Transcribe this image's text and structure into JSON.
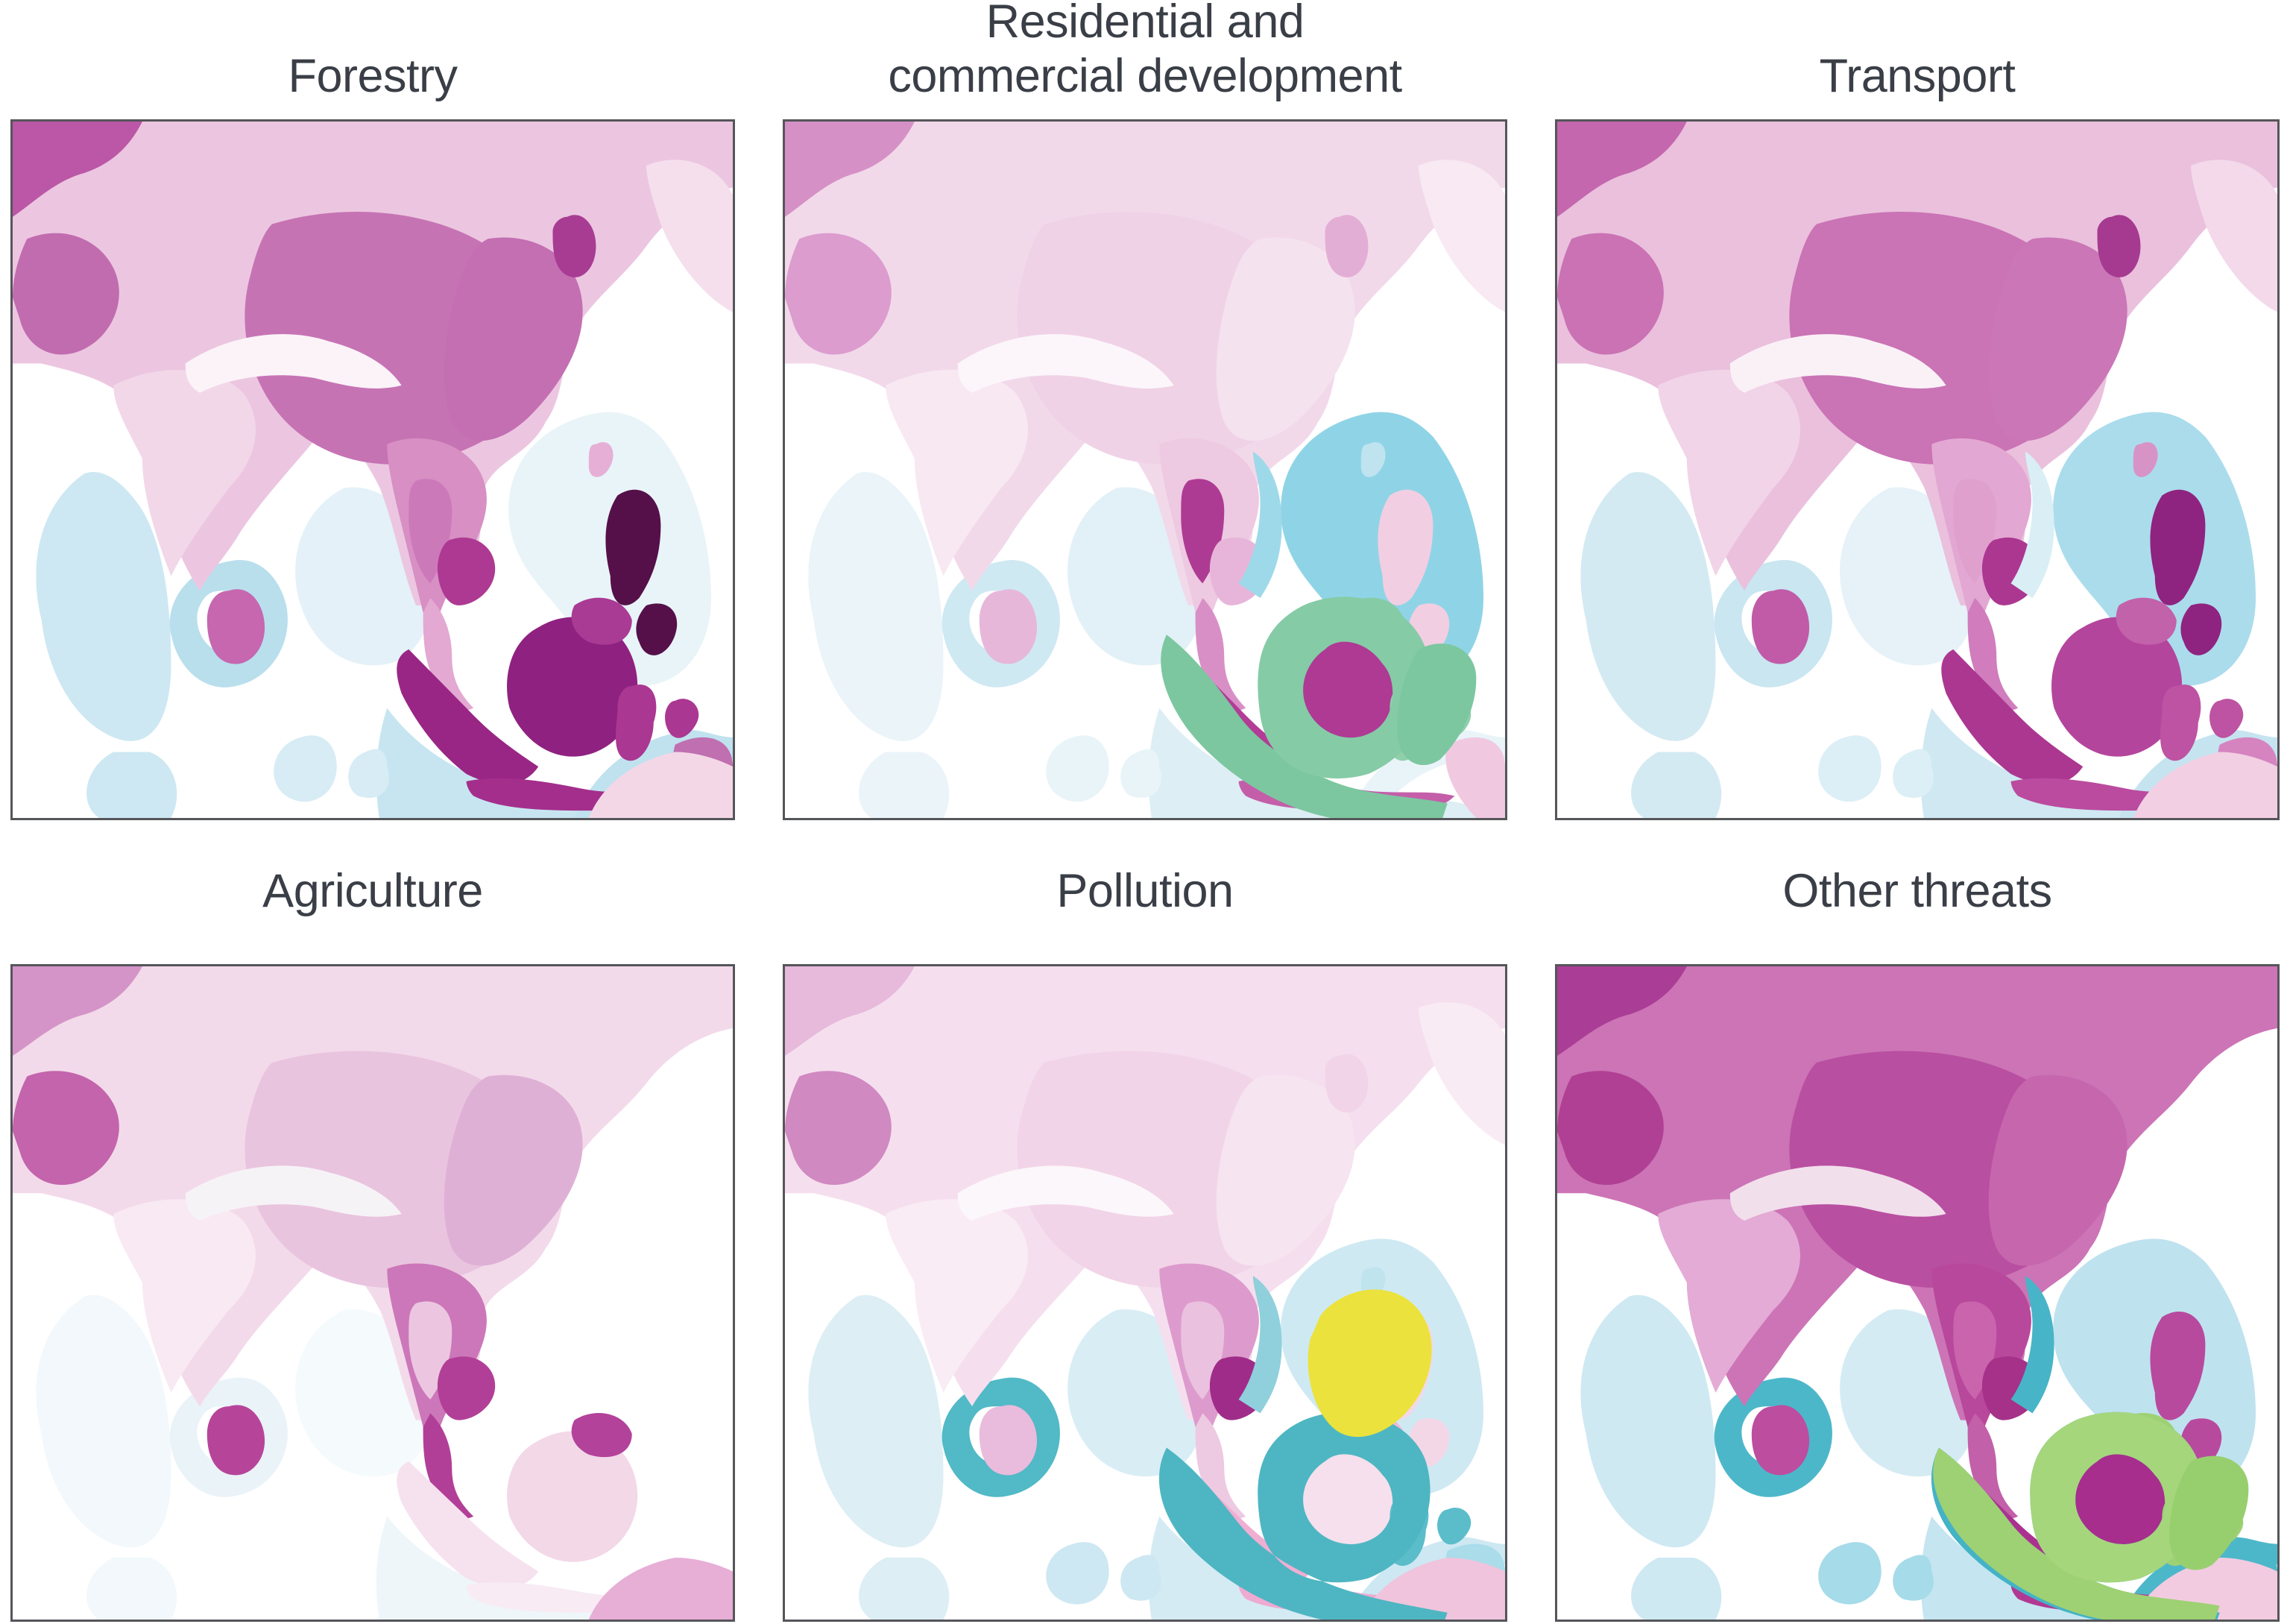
{
  "figure": {
    "kind": "map-grid",
    "text_color": "#3a3e46",
    "frame_color": "#55565a",
    "background": "#ffffff",
    "panels": [
      {
        "id": "forestry",
        "title": "Forestry",
        "colors": {
          "seaA": "#cde8f2",
          "seaB": "#e4f1f8",
          "seaC": "#e9f4f9",
          "seaD": "#c7e5f0",
          "seaE": "#bfe2ee",
          "seaG": "#d7ecf5",
          "seaF": "#b9dfec",
          "land_main": "#ecc6e0",
          "land_top_dark": "#bb57a6",
          "land_tibet": "#c673b4",
          "land_china_east": "#c36fb2",
          "land_india_light": "#f2d7e9",
          "land_pakistan": "#c26cb0",
          "land_himalaya": "#fbf3f8",
          "land_indochina": "#d78fc4",
          "land_thailand": "#cc79ba",
          "land_cambodia": "#ad3992",
          "sri_lanka": "#c667af",
          "malay_peninsula": "#e3a9d2",
          "japan_faint": "#f5dfed",
          "korea_patch": "#a83c93",
          "taiwan": "#e6b0d6",
          "philippines": "#551049",
          "sumatra": "#992685",
          "borneo": "#8f2180",
          "borneo_north": "#a93b94",
          "java_chain": "#a42e8c",
          "sulawesi": "#aa3792",
          "new_guinea": "#c06fb0",
          "australia": "#f4d7e7"
        }
      },
      {
        "id": "residential",
        "title": "Residential and\ncommercial development",
        "colors": {
          "seaA": "#eaf4f9",
          "seaB": "#e2f0f7",
          "seaC": "#8fd4e6",
          "seaD": "#ddeef5",
          "seaE": "#e9f4f9",
          "seaG": "#e9f4f9",
          "seaF": "#cfe9f3",
          "land_main": "#f2d9ea",
          "land_top_dark": "#d591c6",
          "land_tibet": "#f0d2e7",
          "land_china_east": "#f5e2ef",
          "land_india_light": "#f8e8f2",
          "land_pakistan": "#dc9cce",
          "land_himalaya": "#fcf6fa",
          "land_indochina": "#eec9e2",
          "land_thailand": "#ae3b93",
          "land_cambodia": "#e7b5d9",
          "viet_coast": "#9ed9e9",
          "sri_lanka": "#e7b7da",
          "malay_peninsula": "#d88fc6",
          "japan_faint": "#f8e9f3",
          "korea_patch": "#e3aed6",
          "taiwan": "#bfe4ef",
          "philippines": "#f2cee3",
          "sumatra": "#b23c96",
          "borneo": "#ae3a94",
          "borneo_north": "#85cba6",
          "java_chain": "#c45ea9",
          "sulawesi": "#8fd0ab",
          "new_guinea": "#f0c9e0",
          "green_sumatra": "#7cc7a0",
          "green_borneo": "#85cba6",
          "green_east": "#7cc7a0"
        }
      },
      {
        "id": "transport",
        "title": "Transport",
        "colors": {
          "seaA": "#d4eaf3",
          "seaB": "#e6f2f8",
          "seaC": "#abdcec",
          "seaD": "#cfe8f2",
          "seaE": "#c5e4f0",
          "seaG": "#dceff6",
          "seaF": "#c9e6f1",
          "land_main": "#eac0dd",
          "land_top_dark": "#c467ae",
          "land_tibet": "#ca73b5",
          "land_china_east": "#cb76b6",
          "land_india_light": "#f1d4e7",
          "land_pakistan": "#ca72b4",
          "land_himalaya": "#faf1f7",
          "land_indochina": "#e2a7d2",
          "land_thailand": "#e0a0ce",
          "land_cambodia": "#ab3791",
          "viet_coast": "#d9eef5",
          "sri_lanka": "#c15ba7",
          "malay_peninsula": "#d07cbd",
          "japan_faint": "#f3d9ea",
          "korea_patch": "#a53a90",
          "taiwan": "#d893c6",
          "philippines": "#8f2380",
          "sumatra": "#ab3791",
          "borneo": "#b4459c",
          "borneo_north": "#c262aa",
          "java_chain": "#ba4b9e",
          "sulawesi": "#bd53a2",
          "new_guinea": "#d584c0",
          "australia": "#f2cfe2"
        }
      },
      {
        "id": "agriculture",
        "title": "Agriculture",
        "colors": {
          "seaA": "#f2f8fb",
          "seaB": "#f5fafc",
          "seaD": "#eef6fa",
          "seaF": "#eaf3f8",
          "land_main": "#f3daea",
          "land_top_dark": "#d594c8",
          "land_tibet": "#e9c4de",
          "land_china_east": "#dfb0d5",
          "land_india_light": "#f8e9f3",
          "land_pakistan": "#c364ad",
          "land_himalaya": "#f6f3f7",
          "land_indochina": "#cc77b9",
          "land_thailand": "#ecc6e1",
          "land_cambodia": "#b23f97",
          "sri_lanka": "#b6459a",
          "malay_peninsula": "#b23f97",
          "sumatra": "#f6e2ee",
          "borneo": "#f3d8e8",
          "borneo_north": "#b3429a",
          "java_chain": "#f8ebf4",
          "australia": "#e7aed6"
        }
      },
      {
        "id": "pollution",
        "title": "Pollution",
        "colors": {
          "seaA": "#ddeef5",
          "seaB": "#d9edf5",
          "seaC": "#cfe9f3",
          "seaD": "#d5ebf4",
          "seaE": "#cde8f2",
          "seaG": "#cde8f2",
          "seaF": "#52b9c6",
          "land_main": "#f5dfee",
          "land_top_dark": "#e7b9db",
          "land_tibet": "#f2d4e8",
          "land_china_east": "#f6e4f0",
          "land_india_light": "#f9ecf5",
          "land_pakistan": "#d189c1",
          "land_himalaya": "#fcf7fa",
          "land_indochina": "#dd9bcd",
          "land_thailand": "#eac1df",
          "land_cambodia": "#a02c89",
          "viet_coast": "#8fd0dc",
          "sri_lanka": "#e9bbdc",
          "malay_peninsula": "#eec9e2",
          "japan_faint": "#f8ebf4",
          "korea_patch": "#f2d4e8",
          "taiwan": "#bfe4ee",
          "philippines": "#f4d7e7",
          "sumatra": "#f0aed3",
          "borneo": "#f6e0ed",
          "borneo_north": "#f2b8d8",
          "java_chain": "#eeaad1",
          "sulawesi": "#5bbdc9",
          "new_guinea": "#aadcea",
          "australia": "#f0c4dc",
          "teal_coast": "#4eb6c2",
          "yellow_blob": "#ebe23d"
        }
      },
      {
        "id": "other_threats",
        "title": "Other threats",
        "colors": {
          "seaA": "#cfe9f3",
          "seaB": "#d5ebf4",
          "seaC": "#bfe2ef",
          "seaD": "#c5e5f0",
          "seaE": "#4db7ca",
          "seaG": "#a6dbe9",
          "seaF": "#4db7ca",
          "land_main": "#cc74b6",
          "land_top_dark": "#aa3d95",
          "land_tibet": "#b94fa1",
          "land_china_east": "#c667ae",
          "land_india_light": "#e3abd5",
          "land_pakistan": "#b04093",
          "land_himalaya": "#f2dfec",
          "land_indochina": "#b8489c",
          "land_thailand": "#ca64ac",
          "land_cambodia": "#a53189",
          "viet_coast": "#48b4c7",
          "sri_lanka": "#bc4d9f",
          "malay_peninsula": "#c260a9",
          "philippines": "#b84a9e",
          "sumatra": "#ab3190",
          "borneo": "#a72e8d",
          "borneo_north": "#9ed173",
          "java_chain": "#b23993",
          "sulawesi": "#9ed173",
          "new_guinea": "#4db7ca",
          "australia": "#f2cbe0",
          "teal_coast": "#44b3c6",
          "green_sumatra": "#9ed173",
          "green_borneo": "#a5d67c",
          "green_east": "#98cf6e"
        }
      }
    ]
  }
}
